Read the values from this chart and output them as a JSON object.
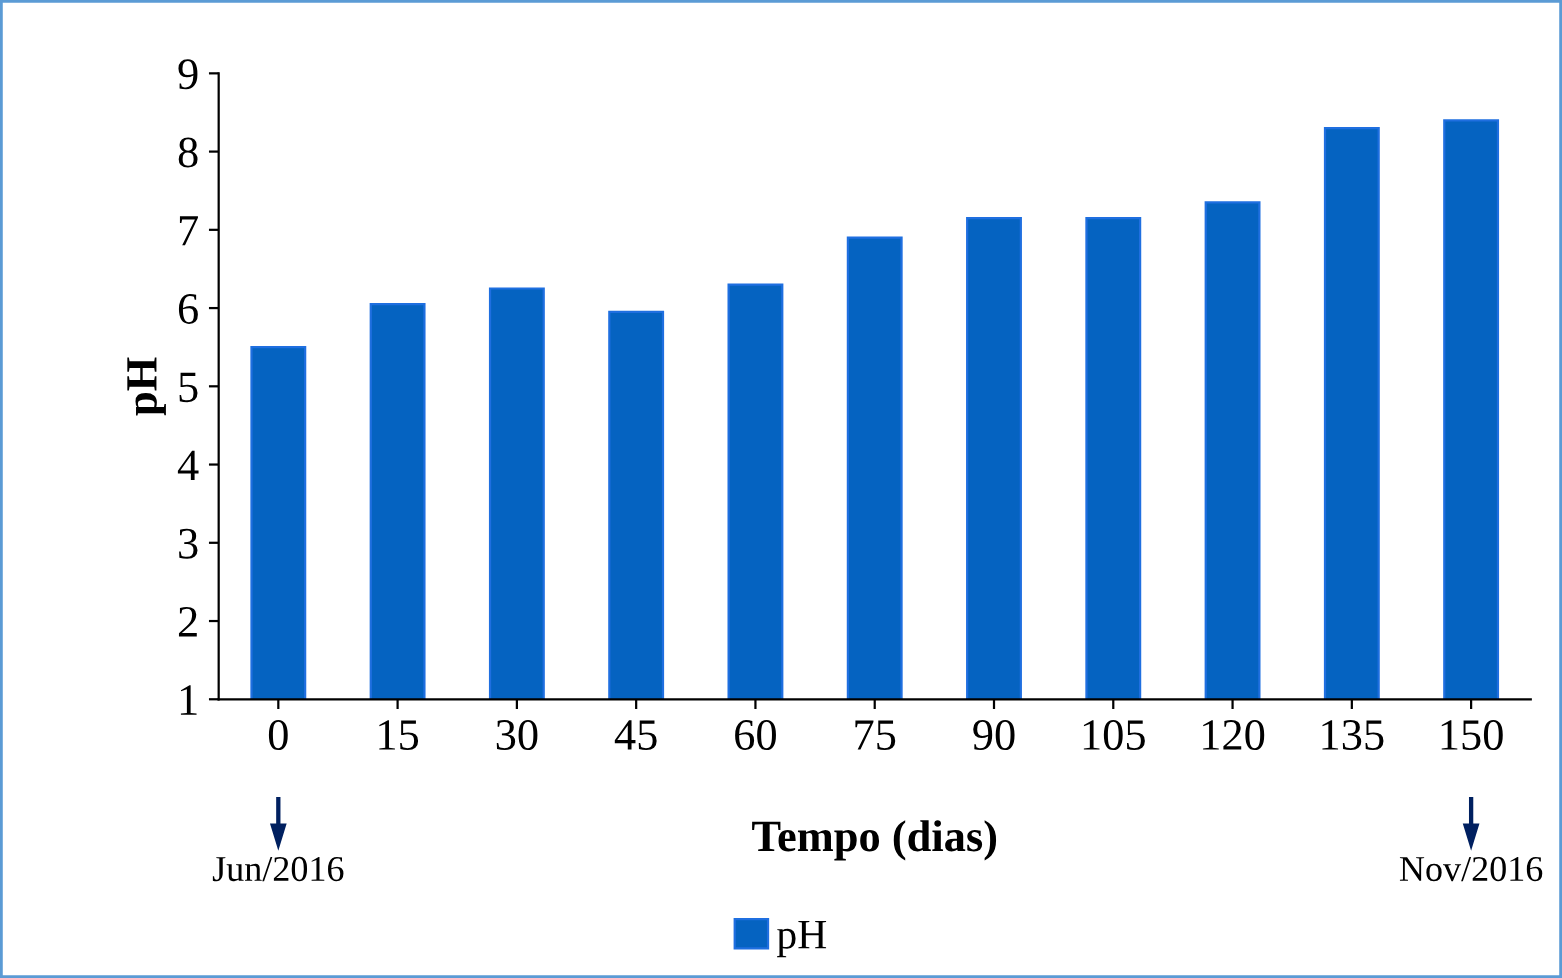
{
  "chart_data": {
    "type": "bar",
    "categories": [
      "0",
      "15",
      "30",
      "45",
      "60",
      "75",
      "90",
      "105",
      "120",
      "135",
      "150"
    ],
    "series": [
      {
        "name": "pH",
        "color": "#0563c1",
        "values": [
          5.5,
          6.05,
          6.25,
          5.95,
          6.3,
          6.9,
          7.15,
          7.15,
          7.35,
          8.3,
          8.4
        ]
      }
    ],
    "xlabel": "Tempo (dias)",
    "ylabel": "pH",
    "ylim": [
      1,
      9
    ],
    "yticks": [
      1,
      2,
      3,
      4,
      5,
      6,
      7,
      8,
      9
    ],
    "annotations": [
      "Jun/2016",
      "Nov/2016"
    ],
    "grid": false,
    "legend": "bottom"
  }
}
